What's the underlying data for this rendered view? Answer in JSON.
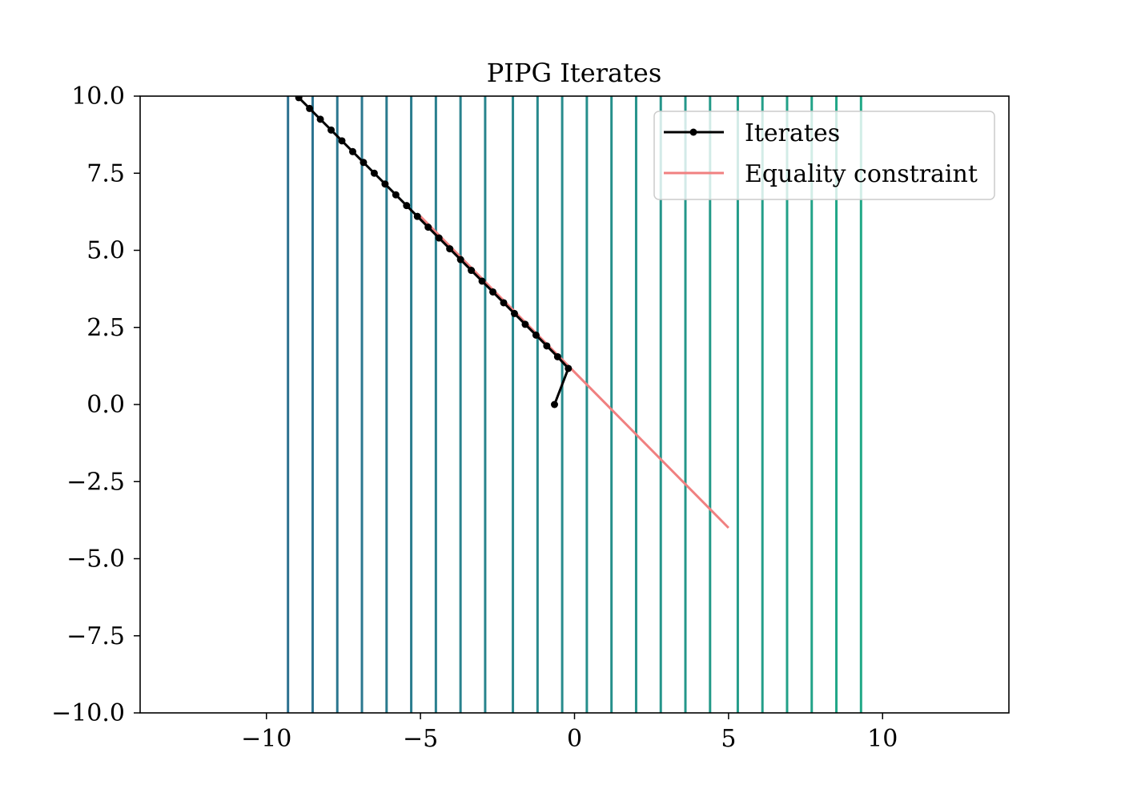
{
  "chart_data": {
    "type": "line",
    "title": "PIPG Iterates",
    "xlabel": "",
    "ylabel": "",
    "xlim": [
      -14.1,
      14.1
    ],
    "ylim": [
      -10,
      10
    ],
    "grid": false,
    "legend_position": "top-right",
    "x_ticks": [
      -10,
      -5,
      0,
      5,
      10
    ],
    "x_tick_labels": [
      "−10",
      "−5",
      "0",
      "5",
      "10"
    ],
    "y_ticks": [
      10,
      7.5,
      5,
      2.5,
      0,
      -2.5,
      -5,
      -7.5,
      -10
    ],
    "y_tick_labels": [
      "10.0",
      "7.5",
      "5.0",
      "2.5",
      "0.0",
      "−2.5",
      "−5.0",
      "−7.5",
      "−10.0"
    ],
    "vertical_lines": {
      "x": [
        -9.3,
        -8.5,
        -7.7,
        -6.9,
        -6.1,
        -5.3,
        -4.5,
        -3.7,
        -2.9,
        -2.0,
        -1.2,
        -0.4,
        0.4,
        1.2,
        2.0,
        2.8,
        3.6,
        4.4,
        5.3,
        6.1,
        6.9,
        7.7,
        8.5,
        9.3
      ],
      "color_start": "#2c7190",
      "color_end": "#21a887"
    },
    "series": [
      {
        "name": "Iterates",
        "color": "#000000",
        "marker": "circle",
        "x": [
          -0.65,
          -0.2,
          -0.55,
          -0.9,
          -1.25,
          -1.6,
          -1.95,
          -2.3,
          -2.65,
          -3.0,
          -3.35,
          -3.7,
          -4.05,
          -4.4,
          -4.75,
          -5.1,
          -5.45,
          -5.8,
          -6.15,
          -6.5,
          -6.85,
          -7.2,
          -7.55,
          -7.9,
          -8.25,
          -8.6,
          -8.95,
          -9.2
        ],
        "y": [
          0.0,
          1.17,
          1.55,
          1.9,
          2.25,
          2.6,
          2.95,
          3.3,
          3.65,
          4.0,
          4.35,
          4.7,
          5.05,
          5.4,
          5.75,
          6.1,
          6.45,
          6.8,
          7.15,
          7.5,
          7.85,
          8.2,
          8.55,
          8.9,
          9.25,
          9.6,
          9.95,
          10.15
        ]
      },
      {
        "name": "Equality constraint",
        "color": "#f08080",
        "marker": "none",
        "x": [
          -5.0,
          5.0
        ],
        "y": [
          6.1,
          -4.0
        ]
      }
    ]
  }
}
